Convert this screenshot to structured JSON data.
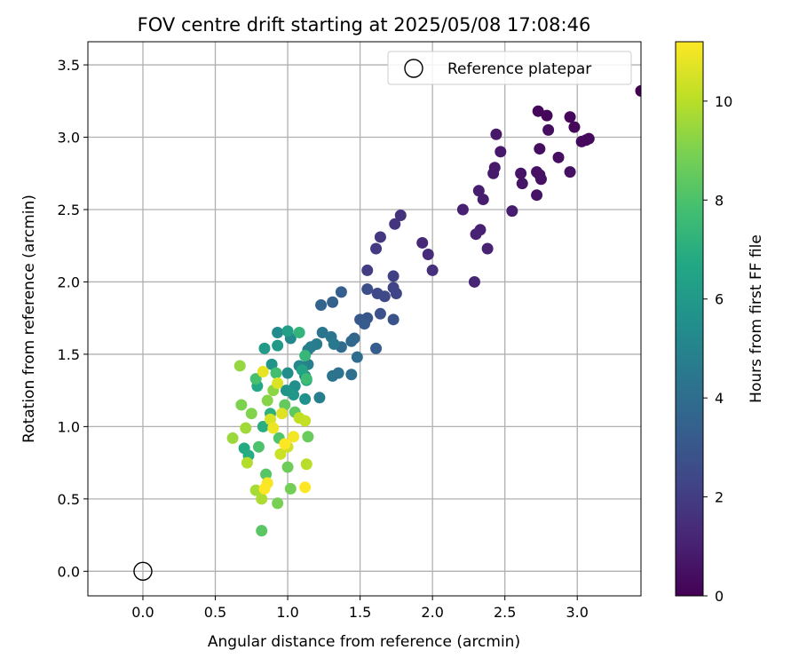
{
  "chart_data": {
    "type": "scatter",
    "title": "FOV centre drift starting at 2025/05/08 17:08:46",
    "xlabel": "Angular distance from reference (arcmin)",
    "ylabel": "Rotation from reference (arcmin)",
    "xlim": [
      -0.38,
      3.44
    ],
    "ylim": [
      -0.17,
      3.66
    ],
    "xticks": [
      0.0,
      0.5,
      1.0,
      1.5,
      2.0,
      2.5,
      3.0
    ],
    "xtick_labels": [
      "0.0",
      "0.5",
      "1.0",
      "1.5",
      "2.0",
      "2.5",
      "3.0"
    ],
    "yticks": [
      0.0,
      0.5,
      1.0,
      1.5,
      2.0,
      2.5,
      3.0,
      3.5
    ],
    "ytick_labels": [
      "0.0",
      "0.5",
      "1.0",
      "1.5",
      "2.0",
      "2.5",
      "3.0",
      "3.5"
    ],
    "grid": true,
    "legend": {
      "placement": "top-right",
      "entries": [
        "Reference platepar"
      ]
    },
    "reference_point": {
      "x": 0.0,
      "y": 0.0
    },
    "colorbar": {
      "label": "Hours from first FF file",
      "colormap": "viridis",
      "min": 0,
      "max": 11.2,
      "ticks": [
        0,
        2,
        4,
        6,
        8,
        10
      ],
      "tick_labels": [
        "0",
        "2",
        "4",
        "6",
        "8",
        "10"
      ]
    },
    "points": [
      {
        "x": 3.44,
        "y": 3.32,
        "c": 0.0
      },
      {
        "x": 2.73,
        "y": 3.18,
        "c": 0.2
      },
      {
        "x": 2.79,
        "y": 3.15,
        "c": 0.2
      },
      {
        "x": 2.95,
        "y": 3.14,
        "c": 0.2
      },
      {
        "x": 2.98,
        "y": 3.07,
        "c": 0.2
      },
      {
        "x": 3.08,
        "y": 2.99,
        "c": 0.3
      },
      {
        "x": 3.06,
        "y": 2.98,
        "c": 0.3
      },
      {
        "x": 3.03,
        "y": 2.97,
        "c": 0.3
      },
      {
        "x": 2.8,
        "y": 3.05,
        "c": 0.4
      },
      {
        "x": 2.74,
        "y": 2.92,
        "c": 0.4
      },
      {
        "x": 2.87,
        "y": 2.86,
        "c": 0.4
      },
      {
        "x": 2.72,
        "y": 2.76,
        "c": 0.5
      },
      {
        "x": 2.74,
        "y": 2.74,
        "c": 0.5
      },
      {
        "x": 2.75,
        "y": 2.71,
        "c": 0.5
      },
      {
        "x": 2.95,
        "y": 2.76,
        "c": 0.5
      },
      {
        "x": 2.61,
        "y": 2.75,
        "c": 0.6
      },
      {
        "x": 2.62,
        "y": 2.68,
        "c": 0.6
      },
      {
        "x": 2.72,
        "y": 2.6,
        "c": 0.6
      },
      {
        "x": 2.44,
        "y": 3.02,
        "c": 0.7
      },
      {
        "x": 2.47,
        "y": 2.9,
        "c": 0.7
      },
      {
        "x": 2.43,
        "y": 2.79,
        "c": 0.8
      },
      {
        "x": 2.42,
        "y": 2.75,
        "c": 0.8
      },
      {
        "x": 2.32,
        "y": 2.63,
        "c": 0.9
      },
      {
        "x": 2.35,
        "y": 2.57,
        "c": 0.9
      },
      {
        "x": 2.55,
        "y": 2.49,
        "c": 0.9
      },
      {
        "x": 2.21,
        "y": 2.5,
        "c": 1.0
      },
      {
        "x": 2.33,
        "y": 2.36,
        "c": 1.0
      },
      {
        "x": 2.3,
        "y": 2.33,
        "c": 1.1
      },
      {
        "x": 2.38,
        "y": 2.23,
        "c": 1.1
      },
      {
        "x": 2.29,
        "y": 2.0,
        "c": 1.2
      },
      {
        "x": 1.93,
        "y": 2.27,
        "c": 1.3
      },
      {
        "x": 1.97,
        "y": 2.19,
        "c": 1.4
      },
      {
        "x": 2.0,
        "y": 2.08,
        "c": 1.5
      },
      {
        "x": 1.78,
        "y": 2.46,
        "c": 1.6
      },
      {
        "x": 1.74,
        "y": 2.4,
        "c": 1.7
      },
      {
        "x": 1.64,
        "y": 2.31,
        "c": 1.8
      },
      {
        "x": 1.61,
        "y": 2.23,
        "c": 1.9
      },
      {
        "x": 1.55,
        "y": 2.08,
        "c": 2.0
      },
      {
        "x": 1.73,
        "y": 2.04,
        "c": 2.1
      },
      {
        "x": 1.73,
        "y": 1.96,
        "c": 2.2
      },
      {
        "x": 1.75,
        "y": 1.92,
        "c": 2.3
      },
      {
        "x": 1.62,
        "y": 1.92,
        "c": 2.4
      },
      {
        "x": 1.67,
        "y": 1.9,
        "c": 2.5
      },
      {
        "x": 1.55,
        "y": 1.95,
        "c": 2.7
      },
      {
        "x": 1.64,
        "y": 1.78,
        "c": 2.8
      },
      {
        "x": 1.73,
        "y": 1.74,
        "c": 2.9
      },
      {
        "x": 1.55,
        "y": 1.75,
        "c": 3.0
      },
      {
        "x": 1.5,
        "y": 1.74,
        "c": 3.1
      },
      {
        "x": 1.53,
        "y": 1.71,
        "c": 3.2
      },
      {
        "x": 1.61,
        "y": 1.54,
        "c": 3.3
      },
      {
        "x": 1.37,
        "y": 1.93,
        "c": 3.4
      },
      {
        "x": 1.31,
        "y": 1.86,
        "c": 3.5
      },
      {
        "x": 1.23,
        "y": 1.84,
        "c": 3.6
      },
      {
        "x": 1.46,
        "y": 1.61,
        "c": 3.7
      },
      {
        "x": 1.44,
        "y": 1.59,
        "c": 3.8
      },
      {
        "x": 1.37,
        "y": 1.55,
        "c": 3.9
      },
      {
        "x": 1.48,
        "y": 1.48,
        "c": 4.0
      },
      {
        "x": 1.44,
        "y": 1.36,
        "c": 4.1
      },
      {
        "x": 1.35,
        "y": 1.37,
        "c": 4.2
      },
      {
        "x": 1.31,
        "y": 1.35,
        "c": 4.3
      },
      {
        "x": 1.24,
        "y": 1.65,
        "c": 4.4
      },
      {
        "x": 1.3,
        "y": 1.62,
        "c": 4.4
      },
      {
        "x": 1.32,
        "y": 1.57,
        "c": 4.5
      },
      {
        "x": 1.2,
        "y": 1.57,
        "c": 4.6
      },
      {
        "x": 1.16,
        "y": 1.55,
        "c": 4.7
      },
      {
        "x": 1.14,
        "y": 1.53,
        "c": 4.8
      },
      {
        "x": 1.22,
        "y": 1.2,
        "c": 4.8
      },
      {
        "x": 1.14,
        "y": 1.43,
        "c": 4.9
      },
      {
        "x": 1.12,
        "y": 1.35,
        "c": 5.0
      },
      {
        "x": 1.08,
        "y": 1.42,
        "c": 5.1
      },
      {
        "x": 1.02,
        "y": 1.61,
        "c": 5.2
      },
      {
        "x": 0.93,
        "y": 1.65,
        "c": 5.3
      },
      {
        "x": 1.0,
        "y": 1.37,
        "c": 5.4
      },
      {
        "x": 1.05,
        "y": 1.28,
        "c": 5.5
      },
      {
        "x": 1.12,
        "y": 1.19,
        "c": 5.6
      },
      {
        "x": 0.99,
        "y": 1.25,
        "c": 5.7
      },
      {
        "x": 0.89,
        "y": 1.43,
        "c": 5.8
      },
      {
        "x": 1.04,
        "y": 1.22,
        "c": 5.9
      },
      {
        "x": 0.93,
        "y": 1.56,
        "c": 6.0
      },
      {
        "x": 0.84,
        "y": 1.54,
        "c": 6.1
      },
      {
        "x": 1.0,
        "y": 1.66,
        "c": 6.3
      },
      {
        "x": 1.1,
        "y": 1.39,
        "c": 6.5
      },
      {
        "x": 1.13,
        "y": 1.32,
        "c": 6.6
      },
      {
        "x": 0.79,
        "y": 1.28,
        "c": 6.7
      },
      {
        "x": 0.7,
        "y": 0.85,
        "c": 6.8
      },
      {
        "x": 0.73,
        "y": 0.8,
        "c": 6.9
      },
      {
        "x": 0.83,
        "y": 1.0,
        "c": 7.0
      },
      {
        "x": 0.88,
        "y": 1.09,
        "c": 7.1
      },
      {
        "x": 1.08,
        "y": 1.65,
        "c": 7.3
      },
      {
        "x": 1.12,
        "y": 1.49,
        "c": 7.4
      },
      {
        "x": 1.13,
        "y": 1.33,
        "c": 7.6
      },
      {
        "x": 0.92,
        "y": 1.37,
        "c": 7.8
      },
      {
        "x": 0.78,
        "y": 1.33,
        "c": 7.9
      },
      {
        "x": 0.8,
        "y": 0.86,
        "c": 8.0
      },
      {
        "x": 0.94,
        "y": 0.92,
        "c": 8.1
      },
      {
        "x": 0.85,
        "y": 0.67,
        "c": 8.2
      },
      {
        "x": 0.82,
        "y": 0.28,
        "c": 8.3
      },
      {
        "x": 1.05,
        "y": 1.1,
        "c": 8.4
      },
      {
        "x": 0.98,
        "y": 1.15,
        "c": 8.5
      },
      {
        "x": 1.14,
        "y": 0.93,
        "c": 8.6
      },
      {
        "x": 1.0,
        "y": 0.72,
        "c": 8.7
      },
      {
        "x": 1.02,
        "y": 0.57,
        "c": 8.8
      },
      {
        "x": 0.93,
        "y": 0.47,
        "c": 8.9
      },
      {
        "x": 0.68,
        "y": 1.15,
        "c": 9.0
      },
      {
        "x": 0.75,
        "y": 1.09,
        "c": 9.1
      },
      {
        "x": 0.86,
        "y": 1.18,
        "c": 9.2
      },
      {
        "x": 0.9,
        "y": 1.25,
        "c": 9.3
      },
      {
        "x": 0.67,
        "y": 1.42,
        "c": 9.4
      },
      {
        "x": 0.62,
        "y": 0.92,
        "c": 9.5
      },
      {
        "x": 0.71,
        "y": 0.99,
        "c": 9.6
      },
      {
        "x": 0.78,
        "y": 0.56,
        "c": 9.7
      },
      {
        "x": 0.82,
        "y": 0.5,
        "c": 9.8
      },
      {
        "x": 0.72,
        "y": 0.75,
        "c": 9.9
      },
      {
        "x": 1.13,
        "y": 0.74,
        "c": 10.0
      },
      {
        "x": 1.08,
        "y": 1.06,
        "c": 10.1
      },
      {
        "x": 1.12,
        "y": 1.04,
        "c": 10.2
      },
      {
        "x": 0.95,
        "y": 0.81,
        "c": 10.3
      },
      {
        "x": 1.0,
        "y": 0.86,
        "c": 10.4
      },
      {
        "x": 0.88,
        "y": 1.05,
        "c": 10.5
      },
      {
        "x": 0.93,
        "y": 1.3,
        "c": 10.6
      },
      {
        "x": 0.96,
        "y": 1.09,
        "c": 10.7
      },
      {
        "x": 0.83,
        "y": 1.38,
        "c": 10.8
      },
      {
        "x": 0.9,
        "y": 0.99,
        "c": 10.9
      },
      {
        "x": 1.04,
        "y": 0.93,
        "c": 11.0
      },
      {
        "x": 0.86,
        "y": 0.61,
        "c": 11.1
      },
      {
        "x": 0.84,
        "y": 0.57,
        "c": 11.2
      },
      {
        "x": 1.12,
        "y": 0.58,
        "c": 11.2
      },
      {
        "x": 0.98,
        "y": 0.88,
        "c": 11.2
      }
    ]
  }
}
